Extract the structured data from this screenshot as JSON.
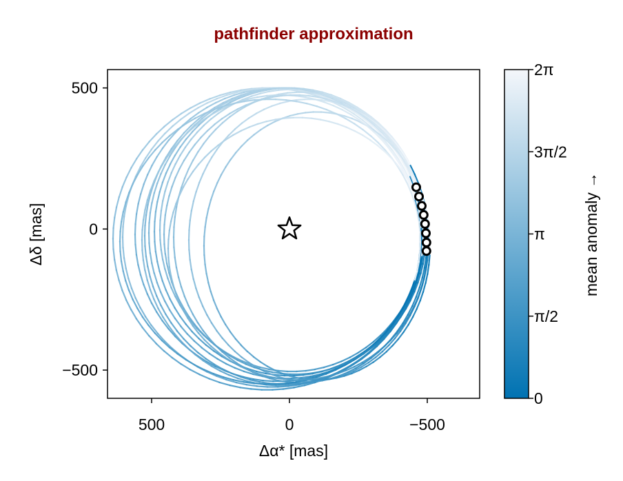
{
  "chart_data": {
    "type": "line",
    "title": "pathfinder approximation",
    "title_color": "#8b0000",
    "xlabel": "Δα* [mas]",
    "ylabel": "Δδ [mas]",
    "xlim": [
      660,
      -690
    ],
    "ylim": [
      -600,
      565
    ],
    "x_reversed": true,
    "xticks": [
      {
        "value": 500,
        "label": "500"
      },
      {
        "value": 0,
        "label": "0"
      },
      {
        "value": -500,
        "label": "−500"
      }
    ],
    "yticks": [
      {
        "value": 500,
        "label": "500"
      },
      {
        "value": 0,
        "label": "0"
      },
      {
        "value": -500,
        "label": "−500"
      }
    ],
    "grid": false,
    "colorbar": {
      "label": "mean anomaly →",
      "range": [
        0,
        6.2832
      ],
      "color_low": "#0072b2",
      "color_high": "#f4f7fb",
      "ticks": [
        {
          "value": 0,
          "label": "0"
        },
        {
          "value": 1.5708,
          "label": "π/2"
        },
        {
          "value": 3.1416,
          "label": "π"
        },
        {
          "value": 4.7124,
          "label": "3π/2"
        },
        {
          "value": 6.2832,
          "label": "2π"
        }
      ]
    },
    "star": {
      "x": 0,
      "y": 0
    },
    "observations": [
      {
        "x": -460,
        "y": 148
      },
      {
        "x": -470,
        "y": 115
      },
      {
        "x": -480,
        "y": 82
      },
      {
        "x": -487,
        "y": 50
      },
      {
        "x": -492,
        "y": 18
      },
      {
        "x": -495,
        "y": -15
      },
      {
        "x": -497,
        "y": -48
      },
      {
        "x": -497,
        "y": -78
      }
    ],
    "orbits": [
      {
        "cx": 0,
        "cy": -10,
        "a": 490,
        "b": 510
      },
      {
        "cx": 10,
        "cy": -15,
        "a": 500,
        "b": 515
      },
      {
        "cx": -10,
        "cy": -5,
        "a": 480,
        "b": 500
      },
      {
        "cx": 40,
        "cy": -20,
        "a": 520,
        "b": 520
      },
      {
        "cx": 80,
        "cy": -35,
        "a": 560,
        "b": 535
      },
      {
        "cx": 60,
        "cy": -30,
        "a": 545,
        "b": 530
      },
      {
        "cx": 20,
        "cy": -25,
        "a": 505,
        "b": 525
      },
      {
        "cx": -40,
        "cy": -30,
        "a": 460,
        "b": 515
      },
      {
        "cx": -70,
        "cy": -40,
        "a": 435,
        "b": 500
      },
      {
        "cx": -100,
        "cy": -60,
        "a": 410,
        "b": 475
      },
      {
        "cx": 30,
        "cy": -40,
        "a": 505,
        "b": 515
      },
      {
        "cx": 70,
        "cy": -45,
        "a": 545,
        "b": 505
      },
      {
        "cx": -20,
        "cy": -20,
        "a": 475,
        "b": 495
      },
      {
        "cx": -30,
        "cy": -70,
        "a": 470,
        "b": 465
      }
    ]
  }
}
